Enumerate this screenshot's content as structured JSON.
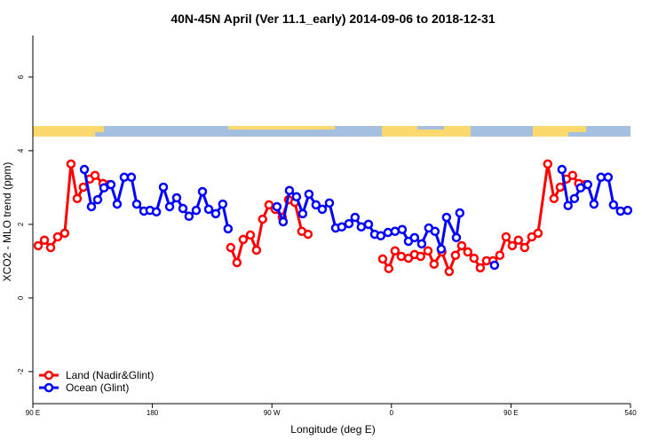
{
  "chart_data": {
    "type": "line",
    "title": "40N-45N April (Ver 11.1_early)   2014-09-06 to 2018-12-31",
    "xlabel": "Longitude (deg E)",
    "ylabel": "XCO2 - MLO trend (ppm)",
    "xlim": [
      90,
      540
    ],
    "ylim": [
      -2.87,
      7.13
    ],
    "xticks": [
      {
        "value": 90,
        "label": "90 E"
      },
      180,
      {
        "value": 270,
        "label": "90 W"
      },
      0,
      {
        "value": 450,
        "label": "90 E"
      },
      540
    ],
    "yticks": [
      -2,
      0,
      2,
      4,
      6
    ],
    "legend": "bottom-left",
    "series": [
      {
        "name": "Land (Nadir&Glint)",
        "color": "#ff0000",
        "x": [
          94,
          98.7,
          103.4,
          108.7,
          114,
          118.7,
          123.4,
          128,
          132.8,
          136.8,
          142.8,
          147.5,
          239,
          243.7,
          248.4,
          253.8,
          258.4,
          263,
          267.8,
          272.5,
          277.8,
          282.5,
          287.2,
          292.5,
          297.2,
          353.4,
          358,
          362.7,
          367.4,
          372.8,
          377.4,
          382,
          387.5,
          392.1,
          398,
          403.5,
          408.2,
          412.9,
          417.5,
          422.2,
          426.9,
          431.6,
          436.5,
          441.6,
          446.3,
          451,
          455.6,
          460.3,
          465.7,
          470.4,
          477.7,
          482.4,
          487.1,
          491.8,
          496.4,
          501,
          505.8
        ],
        "values": [
          1.42,
          1.57,
          1.37,
          1.66,
          1.76,
          3.64,
          2.7,
          3.01,
          3.23,
          3.33,
          3.11,
          3.08,
          1.37,
          0.96,
          1.59,
          1.71,
          1.3,
          2.14,
          2.53,
          2.41,
          2.19,
          2.67,
          2.6,
          1.81,
          1.73,
          1.06,
          0.8,
          1.28,
          1.13,
          1.08,
          1.18,
          1.13,
          1.28,
          0.92,
          1.25,
          0.72,
          1.16,
          1.42,
          1.25,
          1.08,
          0.82,
          1.01,
          1.01,
          1.16,
          1.66,
          1.42,
          1.57,
          1.37,
          1.66,
          1.76,
          3.64,
          2.7,
          3.01,
          3.23,
          3.33,
          3.11,
          3.08
        ]
      },
      {
        "name": "Ocean (Glint)",
        "color": "#0000ff",
        "x": [
          128.8,
          134.1,
          138.8,
          143.5,
          148.8,
          153.5,
          158.8,
          164.2,
          168.2,
          173.6,
          178.2,
          183,
          188.3,
          193,
          198.3,
          203,
          207.6,
          213,
          217.7,
          222.4,
          227.7,
          233,
          237,
          273.8,
          278.5,
          283.2,
          288.5,
          293.2,
          297.9,
          303.2,
          307.9,
          313.3,
          318,
          322.6,
          328,
          332.6,
          337.3,
          342.7,
          347.4,
          352,
          357.4,
          362.7,
          368.1,
          372.8,
          377.4,
          382.8,
          388.1,
          392.8,
          397.5,
          401.5,
          408.9,
          411.5,
          437.6,
          488.4,
          493,
          497.8,
          502.4,
          507.8,
          512.5,
          517.8,
          523.2,
          527.2,
          532.5,
          537.9
        ],
        "values": [
          3.49,
          2.48,
          2.67,
          2.99,
          3.08,
          2.55,
          3.28,
          3.28,
          2.55,
          2.36,
          2.38,
          2.34,
          3.01,
          2.48,
          2.72,
          2.43,
          2.22,
          2.38,
          2.89,
          2.41,
          2.29,
          2.55,
          1.88,
          2.48,
          2.07,
          2.92,
          2.75,
          2.29,
          2.82,
          2.53,
          2.41,
          2.58,
          1.9,
          1.93,
          2.02,
          2.19,
          1.93,
          2.0,
          1.73,
          1.69,
          1.78,
          1.81,
          1.86,
          1.54,
          1.64,
          1.47,
          1.9,
          1.81,
          1.33,
          2.19,
          1.64,
          2.31,
          0.89,
          3.49,
          2.51,
          2.7,
          2.99,
          3.08,
          2.55,
          3.28,
          3.28,
          2.53,
          2.36,
          2.38
        ]
      }
    ]
  }
}
